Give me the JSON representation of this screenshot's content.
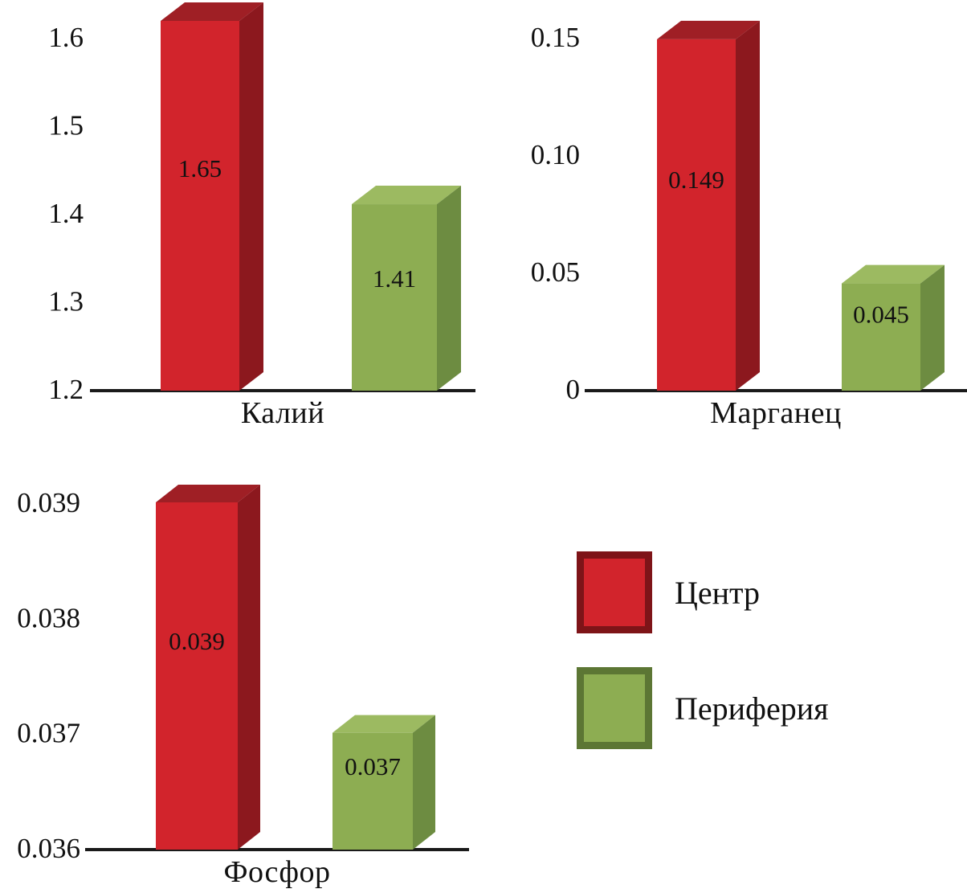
{
  "figure": {
    "background": "#ffffff"
  },
  "colors": {
    "center": {
      "front": "#d2242c",
      "top": "#9f1f25",
      "side": "#8c181e"
    },
    "periphery": {
      "front": "#8dad52",
      "top": "#9cba61",
      "side": "#6d8c41"
    },
    "axis_line": "#1a1a1a",
    "label_text": "#111111"
  },
  "legend": {
    "items": [
      {
        "label": "Центр",
        "color": "#d2242c",
        "border": "#7e1418"
      },
      {
        "label": "Периферия",
        "color": "#8dad52",
        "border": "#5c7634"
      }
    ]
  },
  "chart_data": [
    {
      "type": "bar",
      "title": "Калий",
      "xlabel": "Калий",
      "ylabel": "",
      "categories": [
        "Центр",
        "Периферия"
      ],
      "values": [
        1.65,
        1.41
      ],
      "value_labels": [
        "1.65",
        "1.41"
      ],
      "y_ticks": [
        1.6,
        1.5,
        1.4,
        1.3,
        1.2
      ],
      "y_tick_labels": [
        "1.6",
        "1.5",
        "1.4",
        "1.3",
        "1.2"
      ],
      "ylim": [
        1.2,
        1.6
      ],
      "grid": false,
      "legend_position": "none"
    },
    {
      "type": "bar",
      "title": "Марганец",
      "xlabel": "Марганец",
      "ylabel": "",
      "categories": [
        "Центр",
        "Периферия"
      ],
      "values": [
        0.149,
        0.045
      ],
      "value_labels": [
        "0.149",
        "0.045"
      ],
      "y_ticks": [
        0.15,
        0.1,
        0.05,
        0
      ],
      "y_tick_labels": [
        "0.15",
        "0.10",
        "0.05",
        "0"
      ],
      "ylim": [
        0,
        0.15
      ],
      "grid": false,
      "legend_position": "none"
    },
    {
      "type": "bar",
      "title": "Фосфор",
      "xlabel": "Фосфор",
      "ylabel": "",
      "categories": [
        "Центр",
        "Периферия"
      ],
      "values": [
        0.039,
        0.037
      ],
      "value_labels": [
        "0.039",
        "0.037"
      ],
      "y_ticks": [
        0.039,
        0.038,
        0.037,
        0.036
      ],
      "y_tick_labels": [
        "0.039",
        "0.038",
        "0.037",
        "0.036"
      ],
      "ylim": [
        0.036,
        0.039
      ],
      "grid": false,
      "legend_position": "none"
    }
  ]
}
